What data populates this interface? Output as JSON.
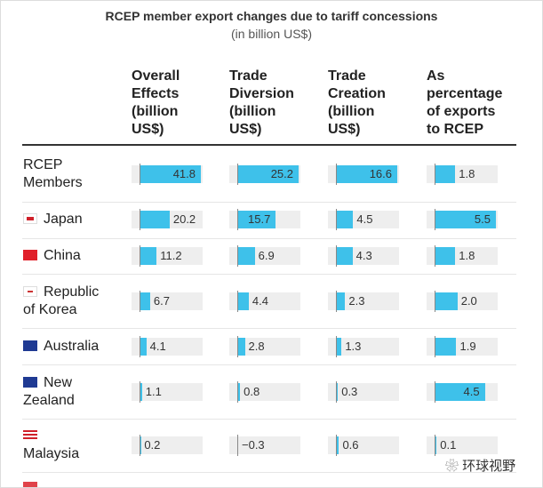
{
  "chart_data": {
    "type": "bar-table",
    "title": "RCEP member export changes due to tariff concessions",
    "subtitle": "(in billion US$)",
    "columns": [
      "Overall Effects (billion US$)",
      "Trade Diversion (billion US$)",
      "Trade Creation (billion US$)",
      "As percentage of exports to RCEP"
    ],
    "color": "#3ec1ea",
    "negative_color": "#e0434a",
    "rows": [
      {
        "label": "RCEP Members",
        "values": [
          41.8,
          25.2,
          16.6,
          1.8
        ]
      },
      {
        "label": "Japan",
        "values": [
          20.2,
          15.7,
          4.5,
          5.5
        ]
      },
      {
        "label": "China",
        "values": [
          11.2,
          6.9,
          4.3,
          1.8
        ]
      },
      {
        "label": "Republic of Korea",
        "values": [
          6.7,
          4.4,
          2.3,
          2.0
        ],
        "value_labels": [
          "6.7",
          "4.4",
          "2.3",
          "2.0"
        ]
      },
      {
        "label": "Australia",
        "values": [
          4.1,
          2.8,
          1.3,
          1.9
        ]
      },
      {
        "label": "New Zealand",
        "values": [
          1.1,
          0.8,
          0.3,
          4.5
        ]
      },
      {
        "label": "Malaysia",
        "values": [
          0.2,
          -0.3,
          0.6,
          0.1
        ],
        "value_labels": [
          "0.2",
          "−0.3",
          "0.6",
          "0.1"
        ]
      }
    ],
    "watermark": "环球视野"
  }
}
